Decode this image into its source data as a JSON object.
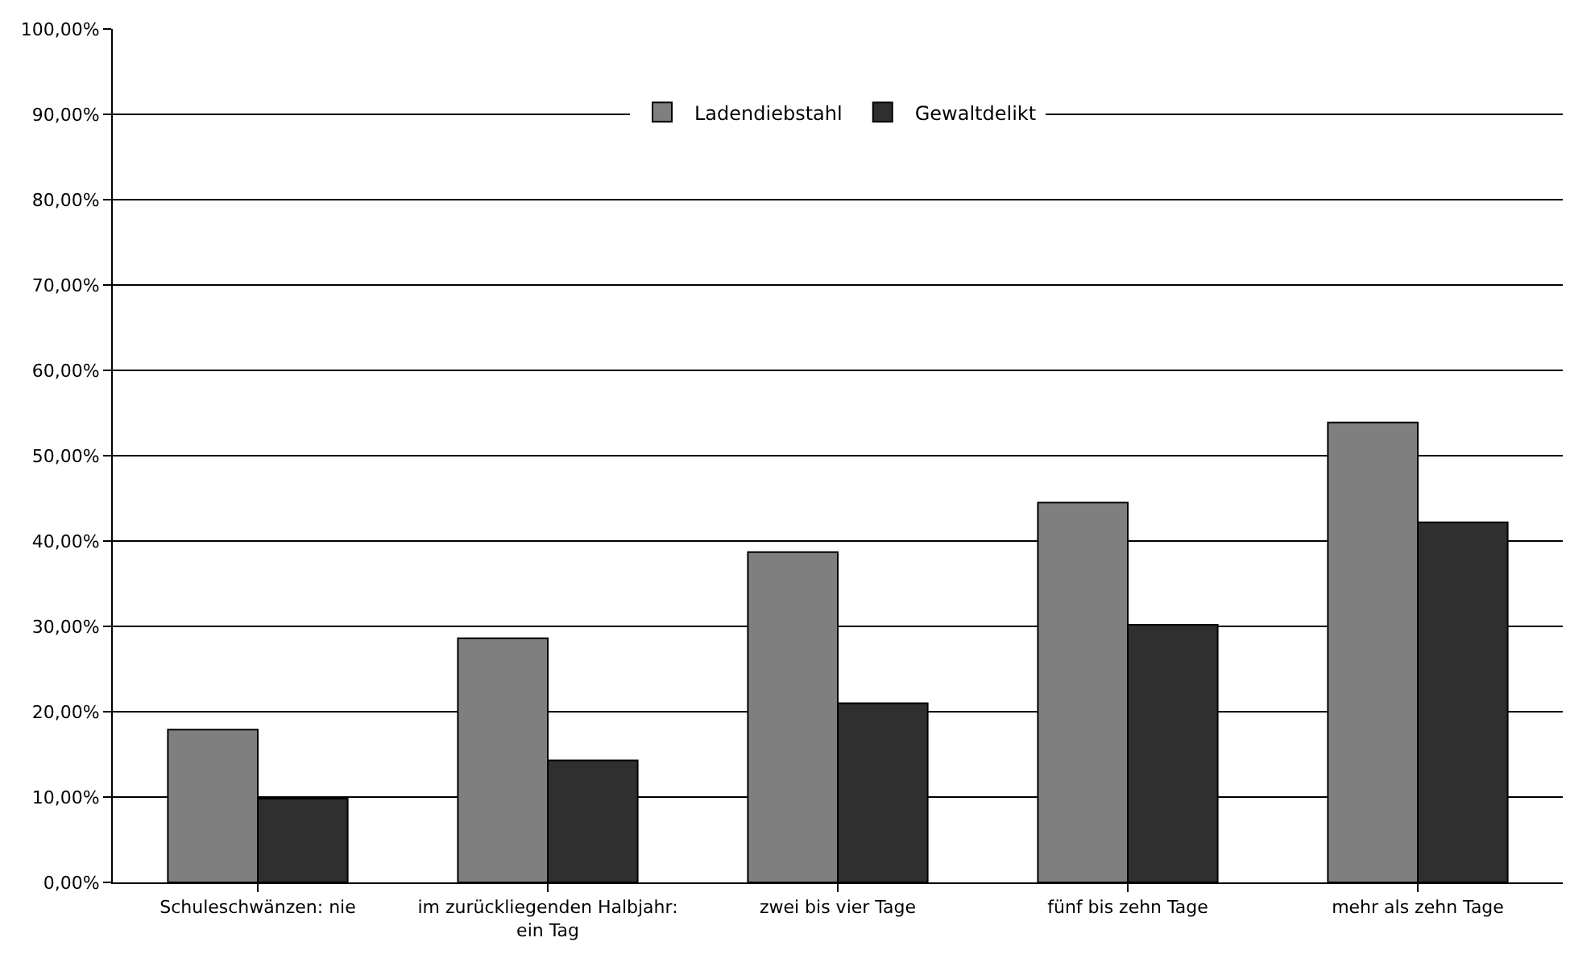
{
  "chart_data": {
    "type": "bar",
    "categories": [
      "Schuleschwänzen: nie",
      "im zurückliegenden Halbjahr: ein Tag",
      "zwei bis vier Tage",
      "fünf bis zehn Tage",
      "mehr als zehn Tage"
    ],
    "series": [
      {
        "name": "Ladendiebstahl",
        "color": "#7f7f7f",
        "values": [
          17.9,
          28.6,
          38.7,
          44.5,
          53.9
        ]
      },
      {
        "name": "Gewaltdelikt",
        "color": "#2f2f2f",
        "values": [
          9.8,
          14.3,
          21.0,
          30.2,
          42.2
        ]
      }
    ],
    "ylim": [
      0,
      100
    ],
    "yticks": [
      {
        "value": 0,
        "label": "0,00%"
      },
      {
        "value": 10,
        "label": "10,00%"
      },
      {
        "value": 20,
        "label": "20,00%"
      },
      {
        "value": 30,
        "label": "30,00%"
      },
      {
        "value": 40,
        "label": "40,00%"
      },
      {
        "value": 50,
        "label": "50,00%"
      },
      {
        "value": 60,
        "label": "60,00%"
      },
      {
        "value": 70,
        "label": "70,00%"
      },
      {
        "value": 80,
        "label": "80,00%"
      },
      {
        "value": 90,
        "label": "90,00%"
      },
      {
        "value": 100,
        "label": "100,00%"
      }
    ],
    "grid": "y",
    "legend": "top"
  }
}
